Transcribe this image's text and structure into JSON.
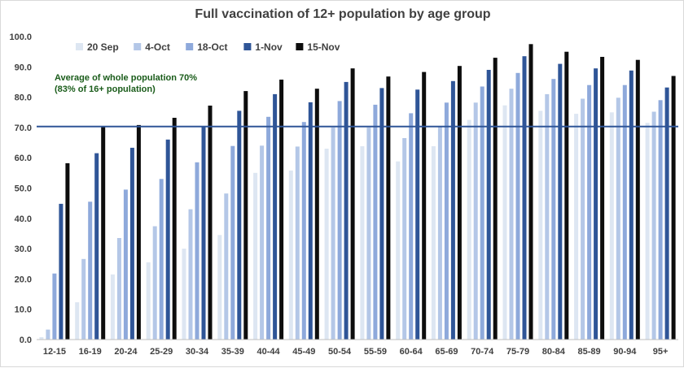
{
  "chart_data": {
    "type": "bar",
    "title": "Full vaccination of 12+ population by age group",
    "xlabel": "",
    "ylabel": "",
    "ylim": [
      0,
      100
    ],
    "yticks": [
      "0.0",
      "10.0",
      "20.0",
      "30.0",
      "40.0",
      "50.0",
      "60.0",
      "70.0",
      "80.0",
      "90.0",
      "100.0"
    ],
    "grid": false,
    "legend_position": "top-left",
    "categories": [
      "12-15",
      "16-19",
      "20-24",
      "25-29",
      "30-34",
      "35-39",
      "40-44",
      "45-49",
      "50-54",
      "55-59",
      "60-64",
      "65-69",
      "70-74",
      "75-79",
      "80-84",
      "85-89",
      "90-94",
      "95+"
    ],
    "series": [
      {
        "name": "20 Sep",
        "color": "#dde6f2",
        "values": [
          0.8,
          12.3,
          21.5,
          25.5,
          30.0,
          34.5,
          55.0,
          55.8,
          63.0,
          63.8,
          58.8,
          63.8,
          72.5,
          77.3,
          75.5,
          74.5,
          75.0,
          71.5
        ]
      },
      {
        "name": "4-Oct",
        "color": "#b4c7e7",
        "values": [
          3.3,
          26.6,
          33.5,
          37.4,
          43.0,
          48.2,
          64.0,
          63.7,
          70.0,
          70.0,
          66.5,
          70.5,
          78.2,
          82.8,
          81.0,
          79.5,
          79.8,
          75.2
        ]
      },
      {
        "name": "18-Oct",
        "color": "#8ea9db",
        "values": [
          21.8,
          45.5,
          49.5,
          53.0,
          58.5,
          63.9,
          73.5,
          71.8,
          78.7,
          77.5,
          74.7,
          78.2,
          83.5,
          88.0,
          86.0,
          84.0,
          84.0,
          79.0
        ]
      },
      {
        "name": "1-Nov",
        "color": "#2f5597",
        "values": [
          44.8,
          61.5,
          63.3,
          66.0,
          70.5,
          75.5,
          81.0,
          78.3,
          85.0,
          83.0,
          82.5,
          85.3,
          89.0,
          93.5,
          91.0,
          89.5,
          88.8,
          83.2
        ]
      },
      {
        "name": "15-Nov",
        "color": "#0d0d0d",
        "values": [
          58.2,
          70.3,
          70.8,
          73.2,
          77.2,
          82.0,
          85.8,
          82.8,
          89.5,
          86.8,
          88.3,
          90.3,
          93.0,
          97.5,
          95.0,
          93.3,
          92.3,
          87.0
        ]
      }
    ],
    "reference_line": {
      "value": 70.3,
      "color": "#2f5597",
      "label_line1": "Average of whole population 70%",
      "label_line2": "(83% of 16+ population)"
    }
  }
}
